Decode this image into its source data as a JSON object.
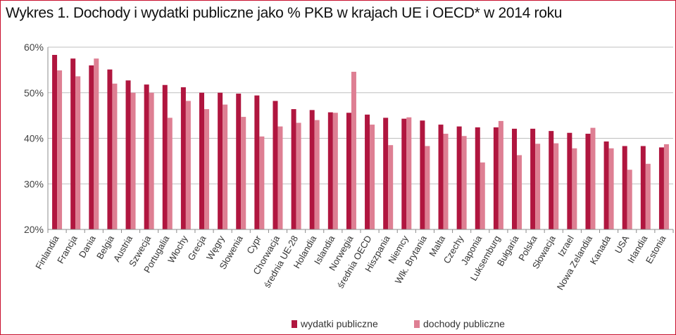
{
  "chart_data": {
    "type": "bar",
    "title": "Wykres 1. Dochody i wydatki publiczne jako % PKB w krajach UE i OECD* w 2014 roku",
    "xlabel": "",
    "ylabel": "",
    "ylim": [
      20,
      60
    ],
    "yticks": [
      "20%",
      "30%",
      "40%",
      "50%",
      "60%"
    ],
    "grid": true,
    "legend_position": "bottom",
    "categories": [
      "Finlandia",
      "Francja",
      "Dania",
      "Belgia",
      "Austria",
      "Szwecja",
      "Portugalia",
      "Włochy",
      "Grecja",
      "Węgry",
      "Słowenia",
      "Cypr",
      "Chorwacja",
      "średnia UE-28",
      "Holandia",
      "Islandia",
      "Norwegia",
      "średnia OECD",
      "Hiszpania",
      "Niemcy",
      "Wlk. Brytania",
      "Malta",
      "Czechy",
      "Japonia",
      "Luksemburg",
      "Bułgaria",
      "Polska",
      "Słowacja",
      "Izrael",
      "Nowa Zelandia",
      "Kanada",
      "USA",
      "Irlandia",
      "Estonia"
    ],
    "series": [
      {
        "name": "wydatki publiczne",
        "color": "#b0163f",
        "values": [
          58.3,
          57.5,
          56.0,
          55.1,
          52.7,
          51.8,
          51.7,
          51.2,
          50.0,
          50.0,
          49.8,
          49.4,
          48.2,
          46.4,
          46.2,
          45.7,
          45.6,
          45.2,
          44.5,
          44.3,
          43.9,
          43.0,
          42.6,
          42.4,
          42.4,
          42.1,
          42.1,
          41.6,
          41.2,
          41.0,
          39.3,
          38.3,
          38.3,
          38.0
        ]
      },
      {
        "name": "dochody publiczne",
        "color": "#de7f93",
        "values": [
          54.9,
          53.6,
          57.5,
          52.0,
          50.0,
          50.0,
          44.5,
          48.2,
          46.4,
          47.4,
          44.7,
          40.4,
          42.6,
          43.4,
          44.0,
          45.6,
          54.6,
          43.0,
          38.5,
          44.6,
          38.3,
          41.0,
          40.5,
          34.7,
          43.8,
          36.3,
          38.8,
          38.9,
          37.8,
          42.3,
          37.8,
          33.1,
          34.4,
          38.7
        ]
      }
    ]
  }
}
